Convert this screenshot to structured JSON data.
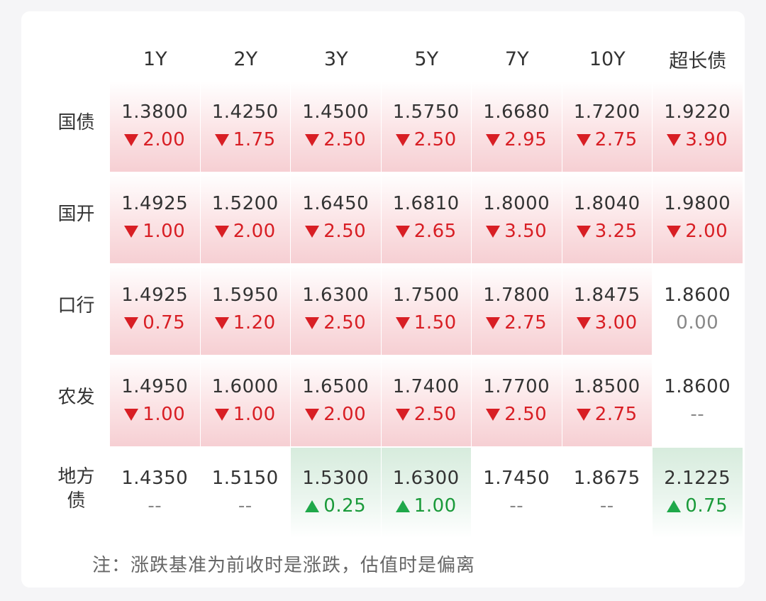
{
  "columns": [
    "1Y",
    "2Y",
    "3Y",
    "5Y",
    "7Y",
    "10Y",
    "超长债"
  ],
  "rows": [
    {
      "label": "国债",
      "cells": [
        {
          "value": "1.3800",
          "change": "2.00",
          "dir": "down"
        },
        {
          "value": "1.4250",
          "change": "1.75",
          "dir": "down"
        },
        {
          "value": "1.4500",
          "change": "2.50",
          "dir": "down"
        },
        {
          "value": "1.5750",
          "change": "2.50",
          "dir": "down"
        },
        {
          "value": "1.6680",
          "change": "2.95",
          "dir": "down"
        },
        {
          "value": "1.7200",
          "change": "2.75",
          "dir": "down"
        },
        {
          "value": "1.9220",
          "change": "3.90",
          "dir": "down"
        }
      ]
    },
    {
      "label": "国开",
      "cells": [
        {
          "value": "1.4925",
          "change": "1.00",
          "dir": "down"
        },
        {
          "value": "1.5200",
          "change": "2.00",
          "dir": "down"
        },
        {
          "value": "1.6450",
          "change": "2.50",
          "dir": "down"
        },
        {
          "value": "1.6810",
          "change": "2.65",
          "dir": "down"
        },
        {
          "value": "1.8000",
          "change": "3.50",
          "dir": "down"
        },
        {
          "value": "1.8040",
          "change": "3.25",
          "dir": "down"
        },
        {
          "value": "1.9800",
          "change": "2.00",
          "dir": "down"
        }
      ]
    },
    {
      "label": "口行",
      "cells": [
        {
          "value": "1.4925",
          "change": "0.75",
          "dir": "down"
        },
        {
          "value": "1.5950",
          "change": "1.20",
          "dir": "down"
        },
        {
          "value": "1.6300",
          "change": "2.50",
          "dir": "down"
        },
        {
          "value": "1.7500",
          "change": "1.50",
          "dir": "down"
        },
        {
          "value": "1.7800",
          "change": "2.75",
          "dir": "down"
        },
        {
          "value": "1.8475",
          "change": "3.00",
          "dir": "down"
        },
        {
          "value": "1.8600",
          "change": "0.00",
          "dir": "flat"
        }
      ]
    },
    {
      "label": "农发",
      "cells": [
        {
          "value": "1.4950",
          "change": "1.00",
          "dir": "down"
        },
        {
          "value": "1.6000",
          "change": "1.00",
          "dir": "down"
        },
        {
          "value": "1.6500",
          "change": "2.00",
          "dir": "down"
        },
        {
          "value": "1.7400",
          "change": "2.50",
          "dir": "down"
        },
        {
          "value": "1.7700",
          "change": "2.50",
          "dir": "down"
        },
        {
          "value": "1.8500",
          "change": "2.75",
          "dir": "down"
        },
        {
          "value": "1.8600",
          "change": "--",
          "dir": "flat"
        }
      ]
    },
    {
      "label": "地方\n债",
      "cells": [
        {
          "value": "1.4350",
          "change": "--",
          "dir": "flat"
        },
        {
          "value": "1.5150",
          "change": "--",
          "dir": "flat"
        },
        {
          "value": "1.5300",
          "change": "0.25",
          "dir": "up"
        },
        {
          "value": "1.6300",
          "change": "1.00",
          "dir": "up"
        },
        {
          "value": "1.7450",
          "change": "--",
          "dir": "flat"
        },
        {
          "value": "1.8675",
          "change": "--",
          "dir": "flat"
        },
        {
          "value": "2.1225",
          "change": "0.75",
          "dir": "up"
        }
      ]
    }
  ],
  "note": "注：涨跌基准为前收时是涨跌，估值时是偏离",
  "colors": {
    "down": "#d81e24",
    "up": "#1fa84a",
    "neutral": "#888888"
  }
}
